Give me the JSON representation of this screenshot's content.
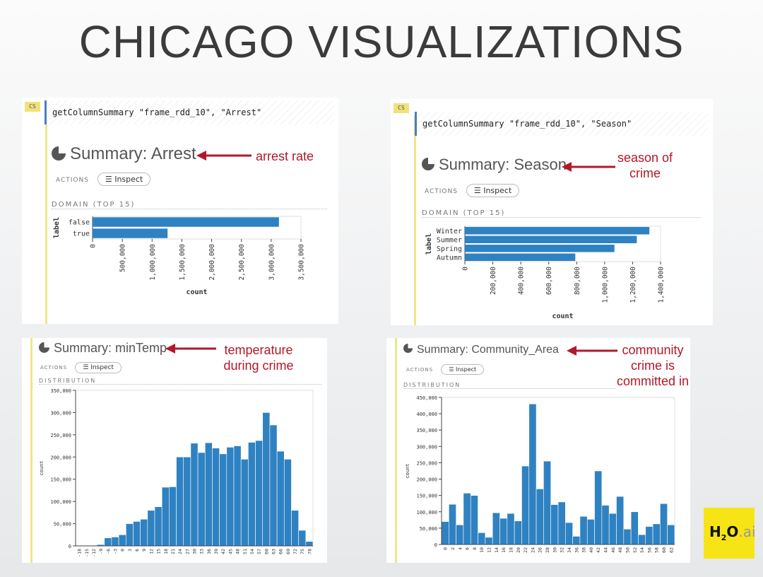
{
  "page": {
    "title": "CHICAGO VISUALIZATIONS"
  },
  "colors": {
    "bar": "#2f82c2",
    "annotation": "#b2182b",
    "code_border": "#4a7ec1",
    "badge": "#f0e27a",
    "logo": "#f7e417"
  },
  "icons": {
    "summary": "pie-chart-icon",
    "inspect": "list-icon"
  },
  "common": {
    "cs_badge": "CS",
    "actions_label": "ACTIONS",
    "inspect_label": "Inspect",
    "domain_label": "DOMAIN (TOP 15)",
    "distribution_label": "DISTRIBUTION",
    "count_label": "count",
    "label_label": "label"
  },
  "panels": {
    "arrest": {
      "code": "getColumnSummary \"frame_rdd_10\", \"Arrest\"",
      "summary_title": "Summary: Arrest",
      "annotation": "arrest rate"
    },
    "season": {
      "code": "getColumnSummary \"frame_rdd_10\", \"Season\"",
      "summary_title": "Summary: Season",
      "annotation": [
        "season of",
        "crime"
      ]
    },
    "mintemp": {
      "summary_title": "Summary: minTemp",
      "annotation": [
        "temperature",
        "during crime"
      ]
    },
    "community": {
      "summary_title": "Summary: Community_Area",
      "annotation": [
        "community",
        "crime is",
        "committed in"
      ]
    }
  },
  "logo": {
    "h": "H",
    "two": "2",
    "o": "O",
    "ai": ".ai"
  },
  "chart_data": [
    {
      "id": "arrest",
      "type": "bar",
      "orientation": "horizontal",
      "ylabel": "label",
      "xlabel": "count",
      "categories": [
        "false",
        "true"
      ],
      "values": [
        3130000,
        1260000
      ],
      "xlim": [
        0,
        3500000
      ],
      "xticks": [
        0,
        500000,
        1000000,
        1500000,
        2000000,
        2500000,
        3000000,
        3500000
      ],
      "xtick_labels": [
        "0",
        "500,000",
        "1,000,000",
        "1,500,000",
        "2,000,000",
        "2,500,000",
        "3,000,000",
        "3,500,000"
      ]
    },
    {
      "id": "season",
      "type": "bar",
      "orientation": "horizontal",
      "ylabel": "label",
      "xlabel": "count",
      "categories": [
        "Winter",
        "Summer",
        "Spring",
        "Autumn"
      ],
      "values": [
        1320000,
        1230000,
        1070000,
        790000
      ],
      "xlim": [
        0,
        1400000
      ],
      "xticks": [
        0,
        200000,
        400000,
        600000,
        800000,
        1000000,
        1200000,
        1400000
      ],
      "xtick_labels": [
        "0",
        "200,000",
        "400,000",
        "600,000",
        "800,000",
        "1,000,000",
        "1,200,000",
        "1,400,000"
      ]
    },
    {
      "id": "mintemp",
      "type": "bar",
      "orientation": "vertical",
      "ylabel": "count",
      "xlabel": "",
      "categories": [
        "-18",
        "-15",
        "-12",
        "-9",
        "-6",
        "-3",
        "0",
        "3",
        "6",
        "9",
        "12",
        "15",
        "18",
        "21",
        "24",
        "27",
        "30",
        "33",
        "36",
        "39",
        "42",
        "45",
        "48",
        "51",
        "54",
        "57",
        "60",
        "63",
        "66",
        "69",
        "72",
        "75",
        "78"
      ],
      "values": [
        1000,
        1000,
        1000,
        3000,
        18000,
        20000,
        25000,
        50000,
        55000,
        60000,
        80000,
        88000,
        132000,
        133000,
        200000,
        200000,
        231000,
        210000,
        232000,
        220000,
        207000,
        222000,
        225000,
        195000,
        233000,
        237000,
        300000,
        272000,
        213000,
        195000,
        80000,
        35000,
        10000
      ],
      "ylim": [
        0,
        350000
      ],
      "yticks": [
        0,
        50000,
        100000,
        150000,
        200000,
        250000,
        300000,
        350000
      ],
      "ytick_labels": [
        "0",
        "50,000",
        "100,000",
        "150,000",
        "200,000",
        "250,000",
        "300,000",
        "350,000"
      ]
    },
    {
      "id": "community",
      "type": "bar",
      "orientation": "vertical",
      "ylabel": "count",
      "xlabel": "",
      "categories": [
        "0",
        "2",
        "4",
        "6",
        "8",
        "10",
        "12",
        "14",
        "16",
        "18",
        "20",
        "22",
        "24",
        "26",
        "28",
        "30",
        "32",
        "34",
        "36",
        "38",
        "40",
        "42",
        "44",
        "46",
        "48",
        "50",
        "52",
        "54",
        "56",
        "58",
        "60",
        "62"
      ],
      "values": [
        70000,
        123000,
        60000,
        157000,
        150000,
        36000,
        22000,
        97000,
        80000,
        95000,
        72000,
        240000,
        430000,
        170000,
        255000,
        122000,
        130000,
        67000,
        25000,
        86000,
        77000,
        225000,
        120000,
        95000,
        147000,
        47000,
        100000,
        30000,
        55000,
        63000,
        125000,
        60000
      ],
      "ylim": [
        0,
        450000
      ],
      "yticks": [
        0,
        50000,
        100000,
        150000,
        200000,
        250000,
        300000,
        350000,
        400000,
        450000
      ],
      "ytick_labels": [
        "0",
        "50,000",
        "100,000",
        "150,000",
        "200,000",
        "250,000",
        "300,000",
        "350,000",
        "400,000",
        "450,000"
      ]
    }
  ]
}
